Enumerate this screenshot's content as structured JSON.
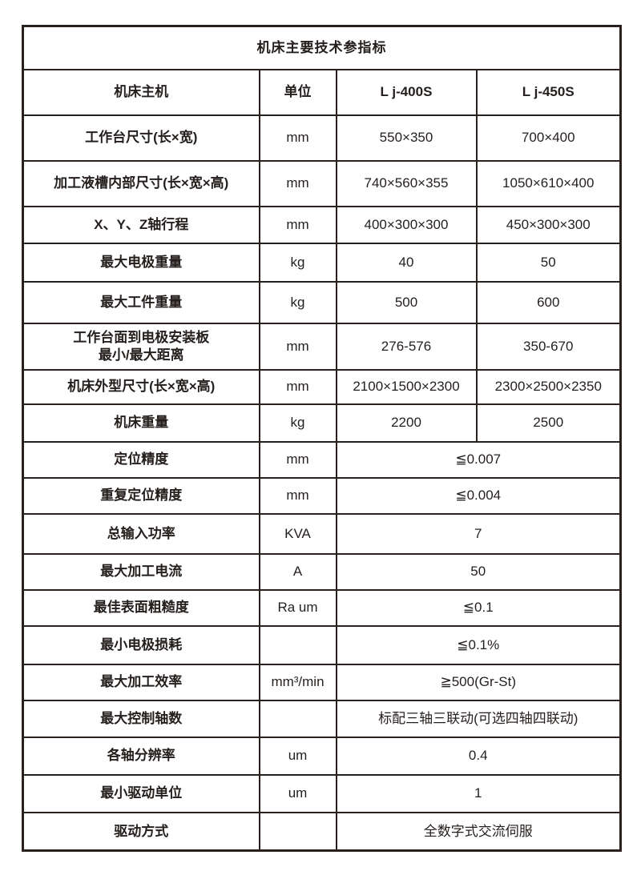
{
  "table": {
    "title": "机床主要技术参指标",
    "header": {
      "label": "机床主机",
      "unit": "单位",
      "model1": "L j-400S",
      "model2": "L j-450S"
    },
    "rows": [
      {
        "label": "工作台尺寸(长×宽)",
        "unit": "mm",
        "v1": "550×350",
        "v2": "700×400"
      },
      {
        "label": "加工液槽内部尺寸(长×宽×高)",
        "unit": "mm",
        "v1": "740×560×355",
        "v2": "1050×610×400"
      },
      {
        "label": "X、Y、Z轴行程",
        "unit": "mm",
        "v1": "400×300×300",
        "v2": "450×300×300"
      },
      {
        "label": "最大电极重量",
        "unit": "kg",
        "v1": "40",
        "v2": "50"
      },
      {
        "label": "最大工件重量",
        "unit": "kg",
        "v1": "500",
        "v2": "600"
      },
      {
        "label": "工作台面到电极安装板\n最小/最大距离",
        "unit": "mm",
        "v1": "276-576",
        "v2": "350-670"
      },
      {
        "label": "机床外型尺寸(长×宽×高)",
        "unit": "mm",
        "v1": "2100×1500×2300",
        "v2": "2300×2500×2350"
      },
      {
        "label": "机床重量",
        "unit": "kg",
        "v1": "2200",
        "v2": "2500"
      },
      {
        "label": "定位精度",
        "unit": "mm",
        "merged": "≦0.007"
      },
      {
        "label": "重复定位精度",
        "unit": "mm",
        "merged": "≦0.004"
      },
      {
        "label": "总输入功率",
        "unit": "KVA",
        "merged": "7"
      },
      {
        "label": "最大加工电流",
        "unit": "A",
        "merged": "50"
      },
      {
        "label": "最佳表面粗糙度",
        "unit": "Ra um",
        "merged": "≦0.1"
      },
      {
        "label": "最小电极损耗",
        "unit": "",
        "merged": "≦0.1%"
      },
      {
        "label": "最大加工效率",
        "unit": "mm³/min",
        "merged": "≧500(Gr-St)"
      },
      {
        "label": "最大控制轴数",
        "unit": "",
        "merged": "标配三轴三联动(可选四轴四联动)"
      },
      {
        "label": "各轴分辨率",
        "unit": "um",
        "merged": "0.4"
      },
      {
        "label": "最小驱动单位",
        "unit": "um",
        "merged": "1"
      },
      {
        "label": "驱动方式",
        "unit": "",
        "merged": "全数字式交流伺服"
      }
    ],
    "colors": {
      "border": "#2a211e",
      "title_bg": "#e9e9e9",
      "label_bg": "#f1f0ef",
      "cell_bg": "#ffffff",
      "text": "#241f1d"
    }
  }
}
